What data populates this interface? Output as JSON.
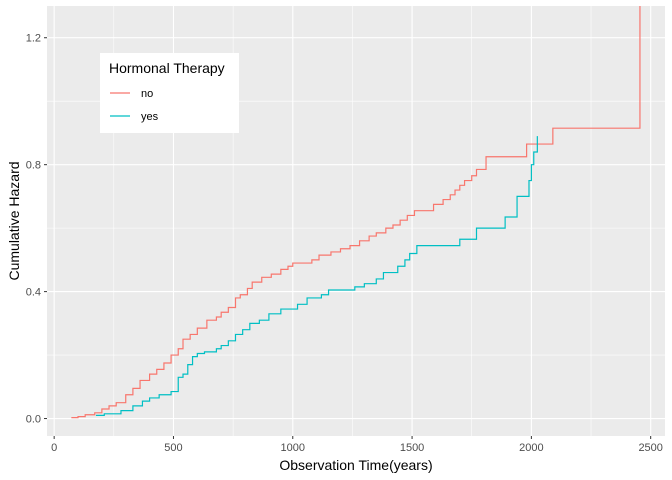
{
  "chart_data": {
    "type": "line",
    "step": true,
    "title": "",
    "xlabel": "Observation Time(years)",
    "ylabel": "Cumulative Hazard",
    "xlim": [
      -30,
      2560
    ],
    "ylim": [
      -0.055,
      1.3
    ],
    "x_ticks": [
      0,
      500,
      1000,
      1500,
      2000,
      2500
    ],
    "x_tick_labels": [
      "0",
      "500",
      "1000",
      "1500",
      "2000",
      "2500"
    ],
    "y_ticks": [
      0.0,
      0.4,
      0.8,
      1.2
    ],
    "y_tick_labels": [
      "0.0",
      "0.4",
      "0.8",
      "1.2"
    ],
    "grid": true,
    "legend": {
      "title": "Hormonal Therapy",
      "placement": "top-left"
    },
    "series": [
      {
        "name": "no",
        "color": "#F8766D",
        "points": [
          [
            72,
            0.003
          ],
          [
            100,
            0.006
          ],
          [
            130,
            0.012
          ],
          [
            170,
            0.018
          ],
          [
            200,
            0.03
          ],
          [
            230,
            0.04
          ],
          [
            260,
            0.05
          ],
          [
            300,
            0.075
          ],
          [
            330,
            0.095
          ],
          [
            360,
            0.12
          ],
          [
            400,
            0.14
          ],
          [
            430,
            0.155
          ],
          [
            460,
            0.175
          ],
          [
            490,
            0.2
          ],
          [
            520,
            0.22
          ],
          [
            540,
            0.25
          ],
          [
            570,
            0.265
          ],
          [
            600,
            0.285
          ],
          [
            640,
            0.31
          ],
          [
            680,
            0.32
          ],
          [
            700,
            0.335
          ],
          [
            730,
            0.35
          ],
          [
            760,
            0.38
          ],
          [
            780,
            0.39
          ],
          [
            810,
            0.41
          ],
          [
            830,
            0.43
          ],
          [
            870,
            0.445
          ],
          [
            910,
            0.455
          ],
          [
            950,
            0.47
          ],
          [
            980,
            0.48
          ],
          [
            1000,
            0.49
          ],
          [
            1080,
            0.5
          ],
          [
            1110,
            0.515
          ],
          [
            1160,
            0.525
          ],
          [
            1200,
            0.535
          ],
          [
            1240,
            0.545
          ],
          [
            1280,
            0.56
          ],
          [
            1320,
            0.575
          ],
          [
            1350,
            0.585
          ],
          [
            1390,
            0.6
          ],
          [
            1420,
            0.61
          ],
          [
            1450,
            0.625
          ],
          [
            1480,
            0.64
          ],
          [
            1510,
            0.655
          ],
          [
            1590,
            0.675
          ],
          [
            1630,
            0.69
          ],
          [
            1660,
            0.705
          ],
          [
            1680,
            0.72
          ],
          [
            1700,
            0.735
          ],
          [
            1720,
            0.75
          ],
          [
            1750,
            0.765
          ],
          [
            1770,
            0.785
          ],
          [
            1810,
            0.825
          ],
          [
            1980,
            0.865
          ],
          [
            2090,
            0.915
          ],
          [
            2455,
            1.3
          ]
        ]
      },
      {
        "name": "yes",
        "color": "#00BFC4",
        "points": [
          [
            175,
            0.01
          ],
          [
            210,
            0.015
          ],
          [
            280,
            0.025
          ],
          [
            330,
            0.04
          ],
          [
            370,
            0.055
          ],
          [
            400,
            0.065
          ],
          [
            440,
            0.075
          ],
          [
            490,
            0.085
          ],
          [
            520,
            0.13
          ],
          [
            540,
            0.14
          ],
          [
            560,
            0.17
          ],
          [
            580,
            0.195
          ],
          [
            600,
            0.205
          ],
          [
            630,
            0.21
          ],
          [
            680,
            0.22
          ],
          [
            700,
            0.23
          ],
          [
            730,
            0.245
          ],
          [
            760,
            0.265
          ],
          [
            790,
            0.28
          ],
          [
            820,
            0.3
          ],
          [
            860,
            0.31
          ],
          [
            900,
            0.33
          ],
          [
            950,
            0.345
          ],
          [
            1020,
            0.36
          ],
          [
            1060,
            0.38
          ],
          [
            1120,
            0.39
          ],
          [
            1150,
            0.405
          ],
          [
            1260,
            0.415
          ],
          [
            1300,
            0.425
          ],
          [
            1350,
            0.44
          ],
          [
            1380,
            0.46
          ],
          [
            1440,
            0.48
          ],
          [
            1470,
            0.5
          ],
          [
            1490,
            0.52
          ],
          [
            1520,
            0.545
          ],
          [
            1700,
            0.565
          ],
          [
            1770,
            0.6
          ],
          [
            1890,
            0.635
          ],
          [
            1940,
            0.7
          ],
          [
            1990,
            0.75
          ],
          [
            2000,
            0.8
          ],
          [
            2010,
            0.84
          ],
          [
            2025,
            0.89
          ]
        ]
      }
    ]
  }
}
